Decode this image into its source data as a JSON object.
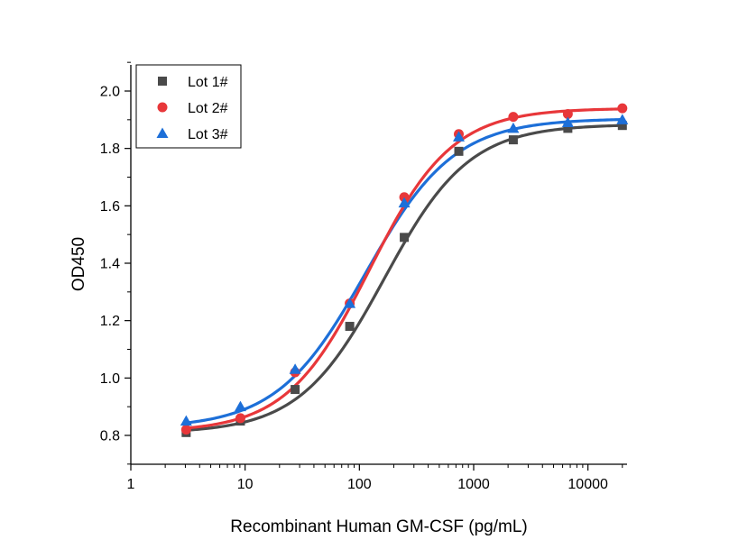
{
  "chart_data": {
    "type": "scatter",
    "title": "",
    "xlabel": "Recombinant Human GM-CSF (pg/mL)",
    "ylabel": "OD450",
    "xscale": "log",
    "xlim": [
      1,
      20000
    ],
    "ylim": [
      0.7,
      2.1
    ],
    "x_ticks": [
      1,
      10,
      100,
      1000,
      10000
    ],
    "x_tick_labels": [
      "1",
      "10",
      "100",
      "1000",
      "10000"
    ],
    "y_ticks": [
      0.8,
      1.0,
      1.2,
      1.4,
      1.6,
      1.8,
      2.0
    ],
    "y_tick_labels": [
      "0.8",
      "1.0",
      "1.2",
      "1.4",
      "1.6",
      "1.8",
      "2.0"
    ],
    "x": [
      3.05,
      9.1,
      27.4,
      82.3,
      247,
      741,
      2222,
      6667,
      20000
    ],
    "grid": false,
    "legend_position": "top-left",
    "series": [
      {
        "name": "Lot 1#",
        "marker": "square",
        "color": "#4a4a4a",
        "values": [
          0.81,
          0.85,
          0.96,
          1.18,
          1.49,
          1.79,
          1.83,
          1.87,
          1.88
        ],
        "fit": {
          "bottom": 0.808,
          "top": 1.884,
          "ec50": 165,
          "hill": 1.17
        }
      },
      {
        "name": "Lot 2#",
        "marker": "circle",
        "color": "#e8373a",
        "values": [
          0.82,
          0.86,
          1.02,
          1.26,
          1.63,
          1.85,
          1.91,
          1.92,
          1.94
        ],
        "fit": {
          "bottom": 0.812,
          "top": 1.94,
          "ec50": 122,
          "hill": 1.2
        }
      },
      {
        "name": "Lot 3#",
        "marker": "triangle",
        "color": "#1d6fd8",
        "values": [
          0.85,
          0.9,
          1.03,
          1.26,
          1.61,
          1.84,
          1.87,
          1.89,
          1.9
        ],
        "fit": {
          "bottom": 0.825,
          "top": 1.904,
          "ec50": 113,
          "hill": 1.12
        }
      }
    ]
  }
}
